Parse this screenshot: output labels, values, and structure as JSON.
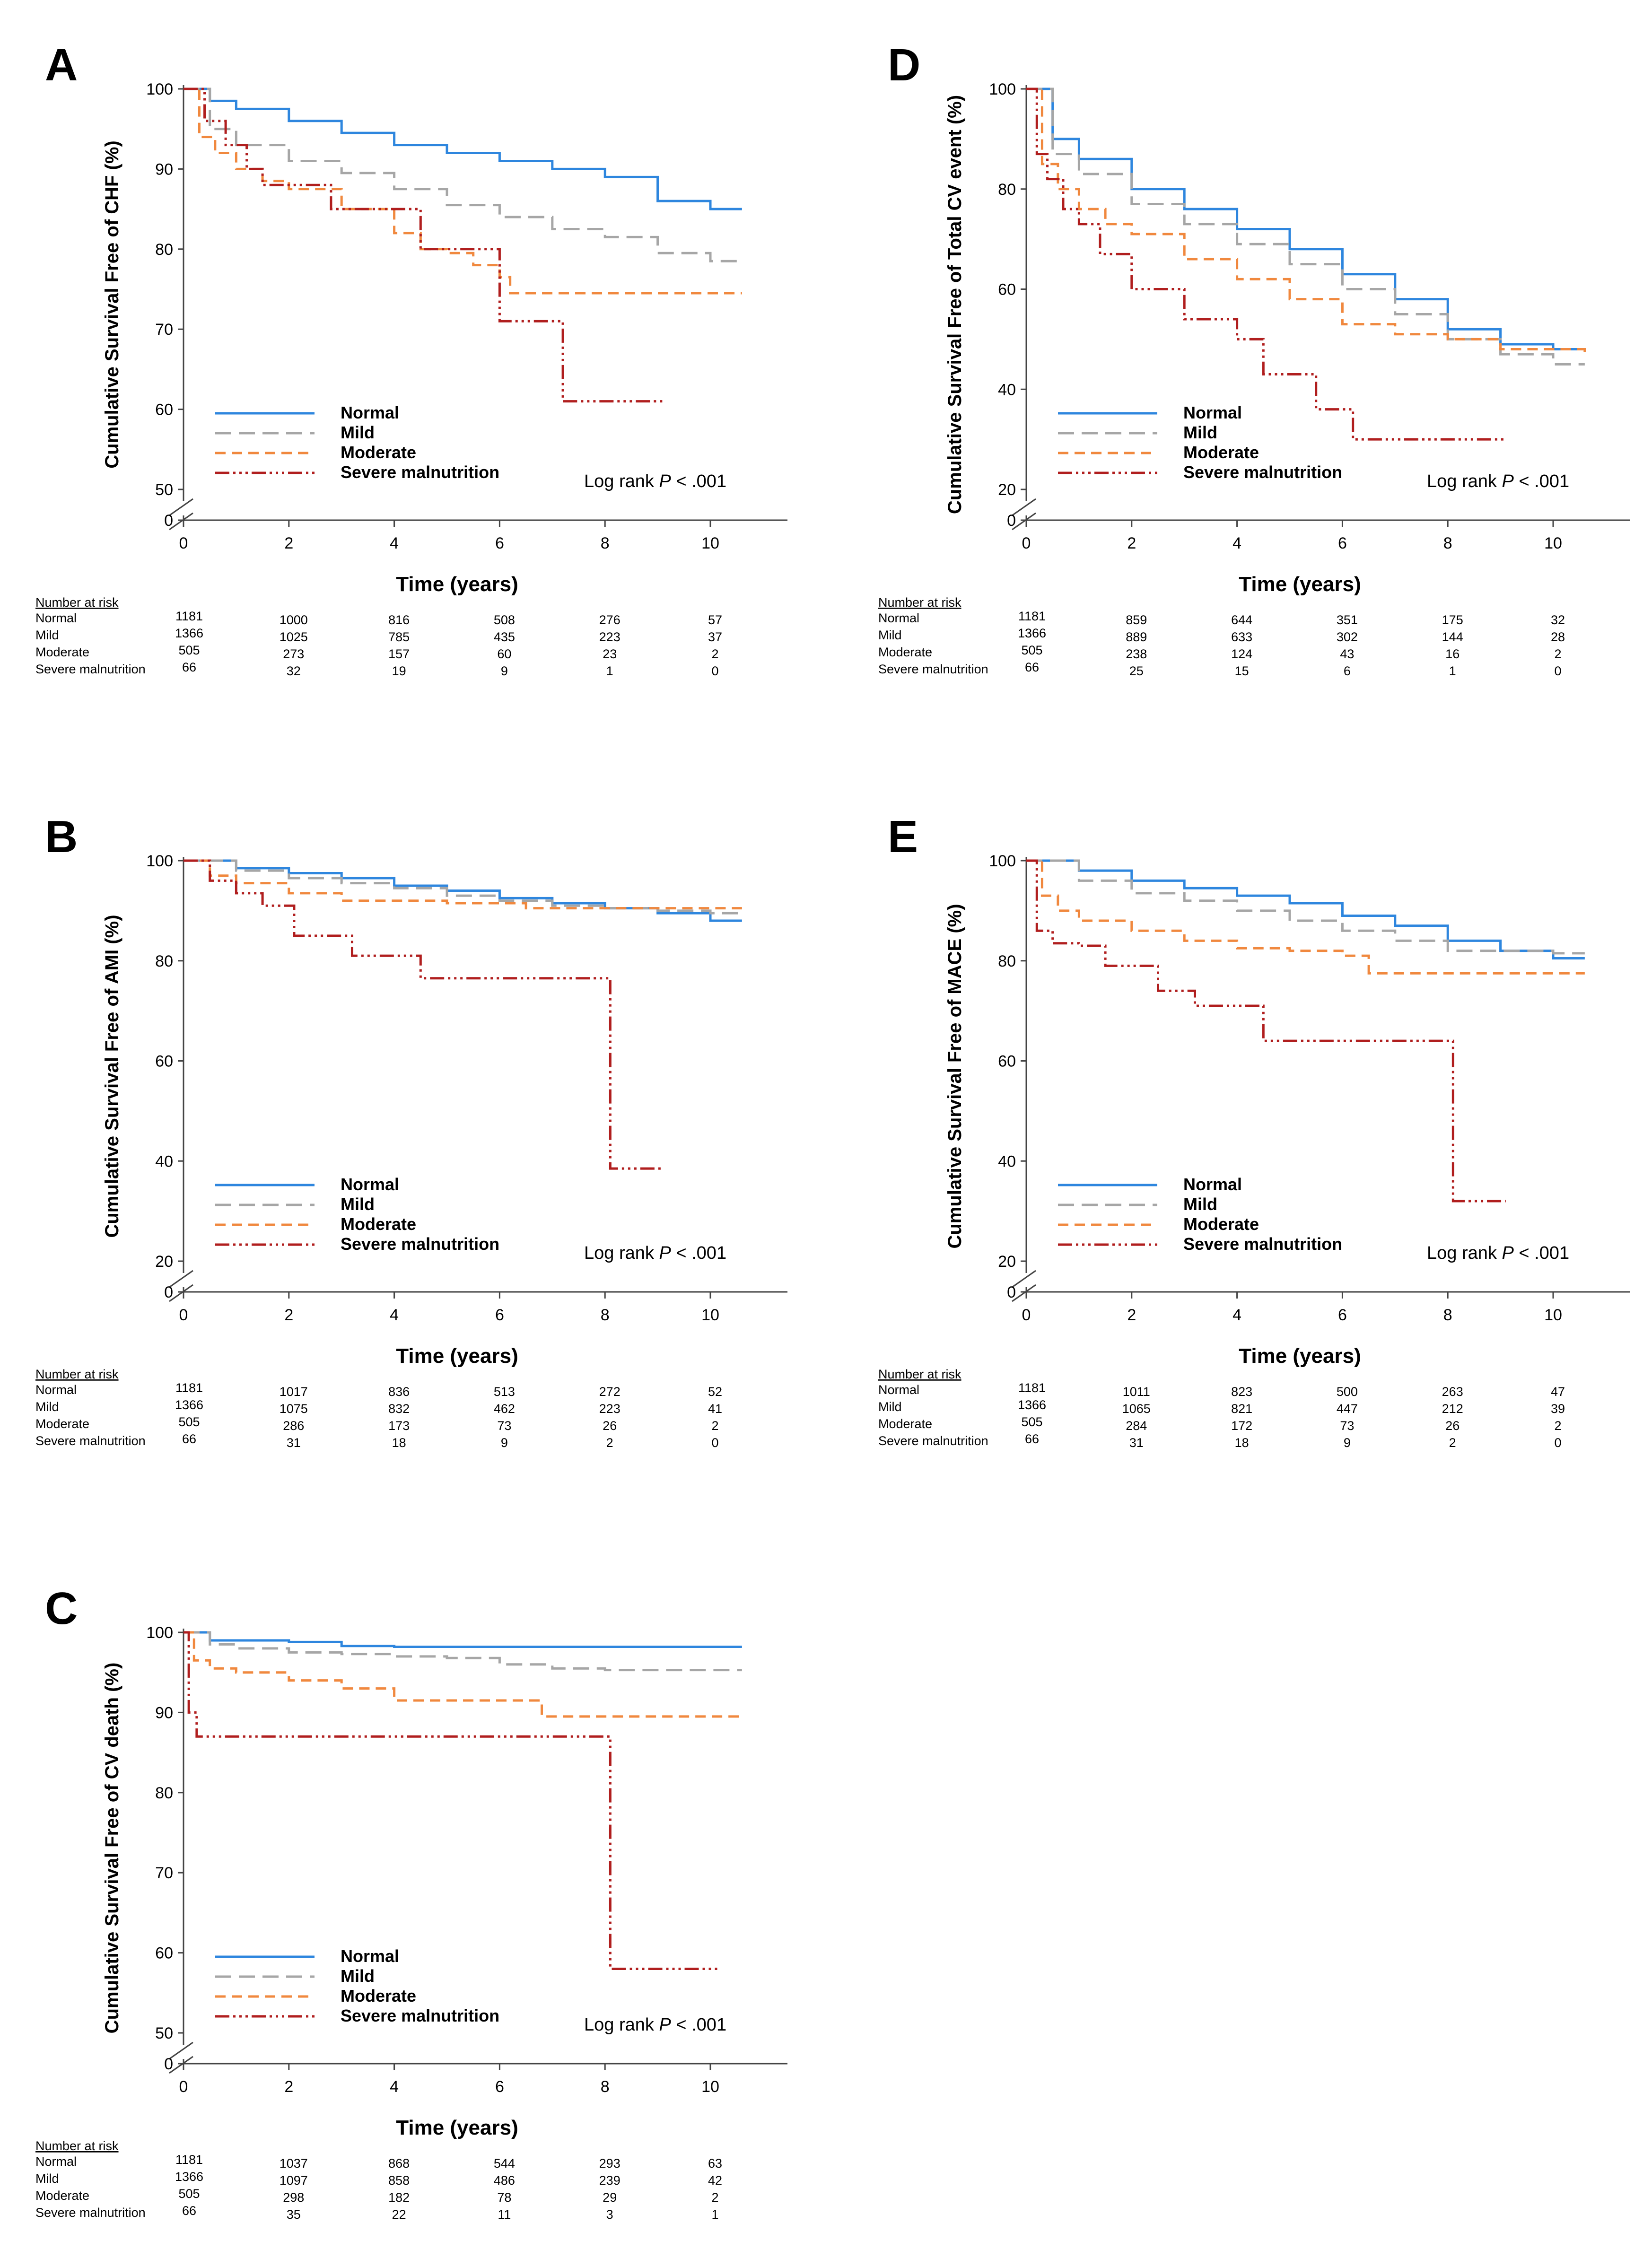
{
  "chart_data": [
    {
      "panel": "A",
      "type": "line",
      "step": true,
      "ylabel": "Cumulative Survival Free of CHF (%)",
      "xlabel": "Time (years)",
      "xlim": [
        0,
        11.5
      ],
      "ylim": [
        45,
        100
      ],
      "y_ticks": [
        100,
        90,
        80,
        70,
        60,
        50
      ],
      "y_zero_label": "0",
      "x_ticks": [
        0,
        2,
        4,
        6,
        8,
        10
      ],
      "log_rank_label": "Log rank",
      "log_rank_p": "P",
      "log_rank_value": "< .001",
      "series": [
        {
          "name": "Normal",
          "x": [
            0,
            0.5,
            1,
            2,
            3,
            4,
            5,
            6,
            7,
            8,
            9,
            10,
            10.6
          ],
          "y": [
            100,
            98.5,
            97.5,
            96,
            94.5,
            93,
            92,
            91,
            90,
            89,
            86,
            85,
            85
          ]
        },
        {
          "name": "Mild",
          "x": [
            0,
            0.5,
            1,
            2,
            3,
            4,
            5,
            6,
            7,
            8,
            9,
            10,
            10.6
          ],
          "y": [
            100,
            95,
            93,
            91,
            89.5,
            87.5,
            85.5,
            84,
            82.5,
            81.5,
            79.5,
            78.5,
            78.5
          ]
        },
        {
          "name": "Moderate",
          "x": [
            0,
            0.3,
            0.6,
            1,
            1.5,
            2,
            3,
            4,
            4.5,
            5,
            5.5,
            6,
            6.2,
            8,
            10.6
          ],
          "y": [
            100,
            94,
            92,
            90,
            88.5,
            87.5,
            85,
            82,
            80,
            79.5,
            78,
            76.5,
            74.5,
            74.5,
            74.5
          ]
        },
        {
          "name": "Severe malnutrition",
          "x": [
            0,
            0.4,
            0.8,
            1.2,
            1.5,
            2.8,
            4.5,
            6,
            7,
            7.2,
            9.1
          ],
          "y": [
            100,
            96,
            93,
            90,
            88,
            85,
            80,
            71,
            71,
            61,
            61
          ]
        }
      ],
      "risk_table": {
        "title": "Number at risk",
        "times": [
          0,
          2,
          4,
          6,
          8,
          10
        ],
        "rows": [
          {
            "label": "Normal",
            "values": [
              "1181",
              "1000",
              "816",
              "508",
              "276",
              "57"
            ]
          },
          {
            "label": "Mild",
            "values": [
              "1366",
              "1025",
              "785",
              "435",
              "223",
              "37"
            ]
          },
          {
            "label": "Moderate",
            "values": [
              "505",
              "273",
              "157",
              "60",
              "23",
              "2"
            ]
          },
          {
            "label": "Severe malnutrition",
            "values": [
              "66",
              "32",
              "19",
              "9",
              "1",
              "0"
            ]
          }
        ]
      }
    },
    {
      "panel": "B",
      "type": "line",
      "step": true,
      "ylabel": "Cumulative Survival Free of AMI (%)",
      "xlabel": "Time (years)",
      "xlim": [
        0,
        11.5
      ],
      "ylim": [
        15,
        100
      ],
      "y_ticks": [
        100,
        80,
        60,
        40,
        20
      ],
      "y_zero_label": "0",
      "x_ticks": [
        0,
        2,
        4,
        6,
        8,
        10
      ],
      "log_rank_label": "Log rank",
      "log_rank_p": "P",
      "log_rank_value": "< .001",
      "series": [
        {
          "name": "Normal",
          "x": [
            0,
            1,
            2,
            3,
            4,
            5,
            6,
            7,
            8,
            9,
            10,
            10.6
          ],
          "y": [
            100,
            98.5,
            97.5,
            96.5,
            95,
            94,
            92.5,
            91.5,
            90.5,
            89.5,
            88,
            88
          ]
        },
        {
          "name": "Mild",
          "x": [
            0,
            1,
            2,
            3,
            4,
            5,
            6,
            7,
            8,
            9,
            10,
            10.6
          ],
          "y": [
            100,
            98,
            96.5,
            95.5,
            94.5,
            93,
            92,
            91,
            90.5,
            90,
            89.5,
            89.5
          ]
        },
        {
          "name": "Moderate",
          "x": [
            0,
            0.5,
            1,
            2,
            3,
            5,
            6.5,
            8,
            10.6
          ],
          "y": [
            100,
            97,
            95.5,
            93.5,
            92,
            91.5,
            90.5,
            90.5,
            90.5
          ]
        },
        {
          "name": "Severe malnutrition",
          "x": [
            0,
            0.5,
            1,
            1.5,
            2.1,
            3.2,
            4.5,
            8,
            8.1,
            9.1
          ],
          "y": [
            100,
            96,
            93.5,
            91,
            85,
            81,
            76.5,
            76.5,
            38.5,
            38.5
          ]
        }
      ],
      "risk_table": {
        "title": "Number at risk",
        "times": [
          0,
          2,
          4,
          6,
          8,
          10
        ],
        "rows": [
          {
            "label": "Normal",
            "values": [
              "1181",
              "1017",
              "836",
              "513",
              "272",
              "52"
            ]
          },
          {
            "label": "Mild",
            "values": [
              "1366",
              "1075",
              "832",
              "462",
              "223",
              "41"
            ]
          },
          {
            "label": "Moderate",
            "values": [
              "505",
              "286",
              "173",
              "73",
              "26",
              "2"
            ]
          },
          {
            "label": "Severe malnutrition",
            "values": [
              "66",
              "31",
              "18",
              "9",
              "2",
              "0"
            ]
          }
        ]
      }
    },
    {
      "panel": "C",
      "type": "line",
      "step": true,
      "ylabel": "Cumulative Survival Free of CV death (%)",
      "xlabel": "Time (years)",
      "xlim": [
        0,
        11.5
      ],
      "ylim": [
        45,
        100
      ],
      "y_ticks": [
        100,
        90,
        80,
        70,
        60,
        50
      ],
      "y_zero_label": "0",
      "x_ticks": [
        0,
        2,
        4,
        6,
        8,
        10
      ],
      "log_rank_label": "Log rank",
      "log_rank_p": "P",
      "log_rank_value": "< .001",
      "series": [
        {
          "name": "Normal",
          "x": [
            0,
            0.5,
            2,
            3,
            4,
            10.6
          ],
          "y": [
            100,
            99,
            98.8,
            98.3,
            98.2,
            98.2
          ]
        },
        {
          "name": "Mild",
          "x": [
            0,
            0.5,
            1,
            2,
            3,
            4,
            5,
            6,
            7,
            8,
            10.6
          ],
          "y": [
            100,
            98.5,
            98,
            97.5,
            97.3,
            97,
            96.8,
            96,
            95.5,
            95.3,
            95.3
          ]
        },
        {
          "name": "Moderate",
          "x": [
            0,
            0.2,
            0.5,
            1,
            2,
            3,
            4,
            5,
            6.7,
            6.8,
            10.6
          ],
          "y": [
            100,
            96.5,
            95.5,
            95,
            94,
            93,
            91.5,
            91.5,
            91.5,
            89.5,
            89.5
          ]
        },
        {
          "name": "Severe malnutrition",
          "x": [
            0,
            0.1,
            0.25,
            8,
            8.1,
            10.2
          ],
          "y": [
            100,
            90,
            87,
            87,
            58,
            58
          ]
        }
      ],
      "risk_table": {
        "title": "Number at risk",
        "times": [
          0,
          2,
          4,
          6,
          8,
          10
        ],
        "rows": [
          {
            "label": "Normal",
            "values": [
              "1181",
              "1037",
              "868",
              "544",
              "293",
              "63"
            ]
          },
          {
            "label": "Mild",
            "values": [
              "1366",
              "1097",
              "858",
              "486",
              "239",
              "42"
            ]
          },
          {
            "label": "Moderate",
            "values": [
              "505",
              "298",
              "182",
              "78",
              "29",
              "2"
            ]
          },
          {
            "label": "Severe malnutrition",
            "values": [
              "66",
              "35",
              "22",
              "11",
              "3",
              "1"
            ]
          }
        ]
      }
    },
    {
      "panel": "D",
      "type": "line",
      "step": true,
      "ylabel": "Cumulative Survival Free of Total CV event (%)",
      "xlabel": "Time (years)",
      "xlim": [
        0,
        11.5
      ],
      "ylim": [
        15,
        100
      ],
      "y_ticks": [
        100,
        80,
        60,
        40,
        20
      ],
      "y_zero_label": "0",
      "x_ticks": [
        0,
        2,
        4,
        6,
        8,
        10
      ],
      "log_rank_label": "Log rank",
      "log_rank_p": "P",
      "log_rank_value": "< .001",
      "series": [
        {
          "name": "Normal",
          "x": [
            0,
            0.5,
            1,
            2,
            3,
            4,
            5,
            6,
            7,
            8,
            9,
            10,
            10.6
          ],
          "y": [
            100,
            90,
            86,
            80,
            76,
            72,
            68,
            63,
            58,
            52,
            49,
            48,
            48
          ]
        },
        {
          "name": "Mild",
          "x": [
            0,
            0.5,
            1,
            2,
            3,
            4,
            5,
            6,
            7,
            8,
            9,
            10,
            10.6
          ],
          "y": [
            100,
            87,
            83,
            77,
            73,
            69,
            65,
            60,
            55,
            50,
            47,
            45,
            45
          ]
        },
        {
          "name": "Moderate",
          "x": [
            0,
            0.3,
            0.6,
            1,
            1.5,
            2,
            3,
            4,
            5,
            6,
            7,
            8,
            9,
            10.6
          ],
          "y": [
            100,
            85,
            80,
            76,
            73,
            71,
            66,
            62,
            58,
            53,
            51,
            50,
            48,
            47
          ]
        },
        {
          "name": "Severe malnutrition",
          "x": [
            0,
            0.2,
            0.4,
            0.7,
            1,
            1.4,
            2,
            3,
            4,
            4.5,
            5.5,
            6,
            6.2,
            9.1
          ],
          "y": [
            100,
            87,
            82,
            76,
            73,
            67,
            60,
            54,
            50,
            43,
            36,
            36,
            30,
            30
          ]
        }
      ],
      "risk_table": {
        "title": "Number at risk",
        "times": [
          0,
          2,
          4,
          6,
          8,
          10
        ],
        "rows": [
          {
            "label": "Normal",
            "values": [
              "1181",
              "859",
              "644",
              "351",
              "175",
              "32"
            ]
          },
          {
            "label": "Mild",
            "values": [
              "1366",
              "889",
              "633",
              "302",
              "144",
              "28"
            ]
          },
          {
            "label": "Moderate",
            "values": [
              "505",
              "238",
              "124",
              "43",
              "16",
              "2"
            ]
          },
          {
            "label": "Severe malnutrition",
            "values": [
              "66",
              "25",
              "15",
              "6",
              "1",
              "0"
            ]
          }
        ]
      }
    },
    {
      "panel": "E",
      "type": "line",
      "step": true,
      "ylabel": "Cumulative Survival Free of MACE (%)",
      "xlabel": "Time (years)",
      "xlim": [
        0,
        11.5
      ],
      "ylim": [
        15,
        100
      ],
      "y_ticks": [
        100,
        80,
        60,
        40,
        20
      ],
      "y_zero_label": "0",
      "x_ticks": [
        0,
        2,
        4,
        6,
        8,
        10
      ],
      "log_rank_label": "Log rank",
      "log_rank_p": "P",
      "log_rank_value": "< .001",
      "series": [
        {
          "name": "Normal",
          "x": [
            0,
            1,
            2,
            3,
            4,
            5,
            6,
            7,
            8,
            9,
            10,
            10.6
          ],
          "y": [
            100,
            98,
            96,
            94.5,
            93,
            91.5,
            89,
            87,
            84,
            82,
            80.5,
            80.5
          ]
        },
        {
          "name": "Mild",
          "x": [
            0,
            1,
            2,
            3,
            4,
            5,
            6,
            7,
            8,
            9,
            10,
            10.6
          ],
          "y": [
            100,
            96,
            93.5,
            92,
            90,
            88,
            86,
            84,
            82,
            82,
            81.5,
            81.5
          ]
        },
        {
          "name": "Moderate",
          "x": [
            0,
            0.3,
            0.6,
            1,
            2,
            3,
            4,
            5,
            6,
            6.5,
            7,
            10.6
          ],
          "y": [
            100,
            93,
            90,
            88,
            86,
            84,
            82.5,
            82,
            81,
            77.5,
            77.5,
            77.5
          ]
        },
        {
          "name": "Severe malnutrition",
          "x": [
            0,
            0.2,
            0.5,
            1,
            1.5,
            2.5,
            3.2,
            4.5,
            8,
            8.1,
            9.1
          ],
          "y": [
            100,
            86,
            83.5,
            83,
            79,
            74,
            71,
            64,
            64,
            32,
            32
          ]
        }
      ],
      "risk_table": {
        "title": "Number at risk",
        "times": [
          0,
          2,
          4,
          6,
          8,
          10
        ],
        "rows": [
          {
            "label": "Normal",
            "values": [
              "1181",
              "1011",
              "823",
              "500",
              "263",
              "47"
            ]
          },
          {
            "label": "Mild",
            "values": [
              "1366",
              "1065",
              "821",
              "447",
              "212",
              "39"
            ]
          },
          {
            "label": "Moderate",
            "values": [
              "505",
              "284",
              "172",
              "73",
              "26",
              "2"
            ]
          },
          {
            "label": "Severe malnutrition",
            "values": [
              "66",
              "31",
              "18",
              "9",
              "2",
              "0"
            ]
          }
        ]
      }
    }
  ],
  "series_styles": [
    {
      "name": "Normal",
      "color": "#2E86DE",
      "dash": ""
    },
    {
      "name": "Mild",
      "color": "#A6A6A6",
      "dash": "34,16"
    },
    {
      "name": "Moderate",
      "color": "#F0883E",
      "dash": "22,13"
    },
    {
      "name": "Severe malnutrition",
      "color": "#B01E1E",
      "dash": "30,8,5,8,5,8,5,8"
    }
  ]
}
